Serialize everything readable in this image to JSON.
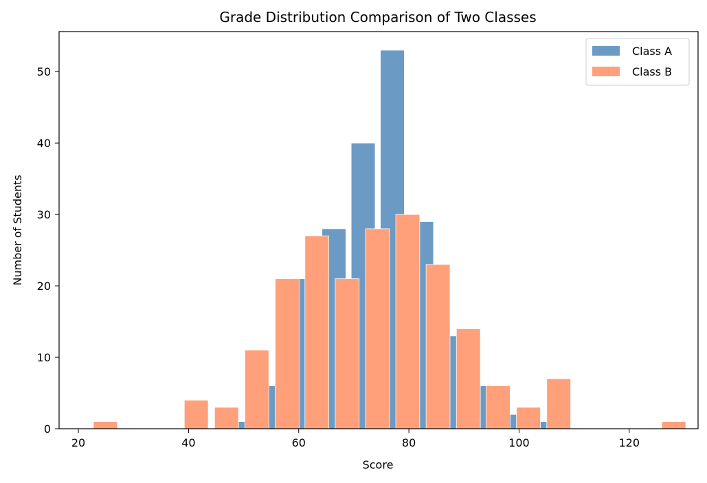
{
  "chart_data": {
    "type": "bar",
    "title": "Grade Distribution Comparison of Two Classes",
    "xlabel": "Score",
    "ylabel": "Number of Students",
    "xlim": [
      16.5,
      132.5
    ],
    "ylim": [
      0,
      55.6
    ],
    "xticks": [
      20,
      40,
      60,
      80,
      100,
      120
    ],
    "yticks": [
      0,
      10,
      20,
      30,
      40,
      50
    ],
    "grid": false,
    "legend_position": "top-right",
    "bin_width": 5.3,
    "series": [
      {
        "name": "Class A",
        "color": "#6b9bc5",
        "points": [
          {
            "x": 50.6,
            "y": 1
          },
          {
            "x": 55.9,
            "y": 6
          },
          {
            "x": 61.2,
            "y": 21
          },
          {
            "x": 66.4,
            "y": 28
          },
          {
            "x": 71.7,
            "y": 40
          },
          {
            "x": 77.0,
            "y": 53
          },
          {
            "x": 82.3,
            "y": 29
          },
          {
            "x": 87.6,
            "y": 13
          },
          {
            "x": 92.9,
            "y": 6
          },
          {
            "x": 98.1,
            "y": 2
          },
          {
            "x": 103.4,
            "y": 1
          }
        ]
      },
      {
        "name": "Class B",
        "color": "#ffa07a",
        "points": [
          {
            "x": 24.9,
            "y": 1
          },
          {
            "x": 41.4,
            "y": 4
          },
          {
            "x": 46.9,
            "y": 3
          },
          {
            "x": 52.4,
            "y": 11
          },
          {
            "x": 57.9,
            "y": 21
          },
          {
            "x": 63.3,
            "y": 27
          },
          {
            "x": 68.8,
            "y": 21
          },
          {
            "x": 74.3,
            "y": 28
          },
          {
            "x": 79.8,
            "y": 30
          },
          {
            "x": 85.3,
            "y": 23
          },
          {
            "x": 90.8,
            "y": 14
          },
          {
            "x": 96.2,
            "y": 6
          },
          {
            "x": 101.7,
            "y": 3
          },
          {
            "x": 107.2,
            "y": 7
          },
          {
            "x": 128.1,
            "y": 1
          }
        ]
      }
    ]
  }
}
